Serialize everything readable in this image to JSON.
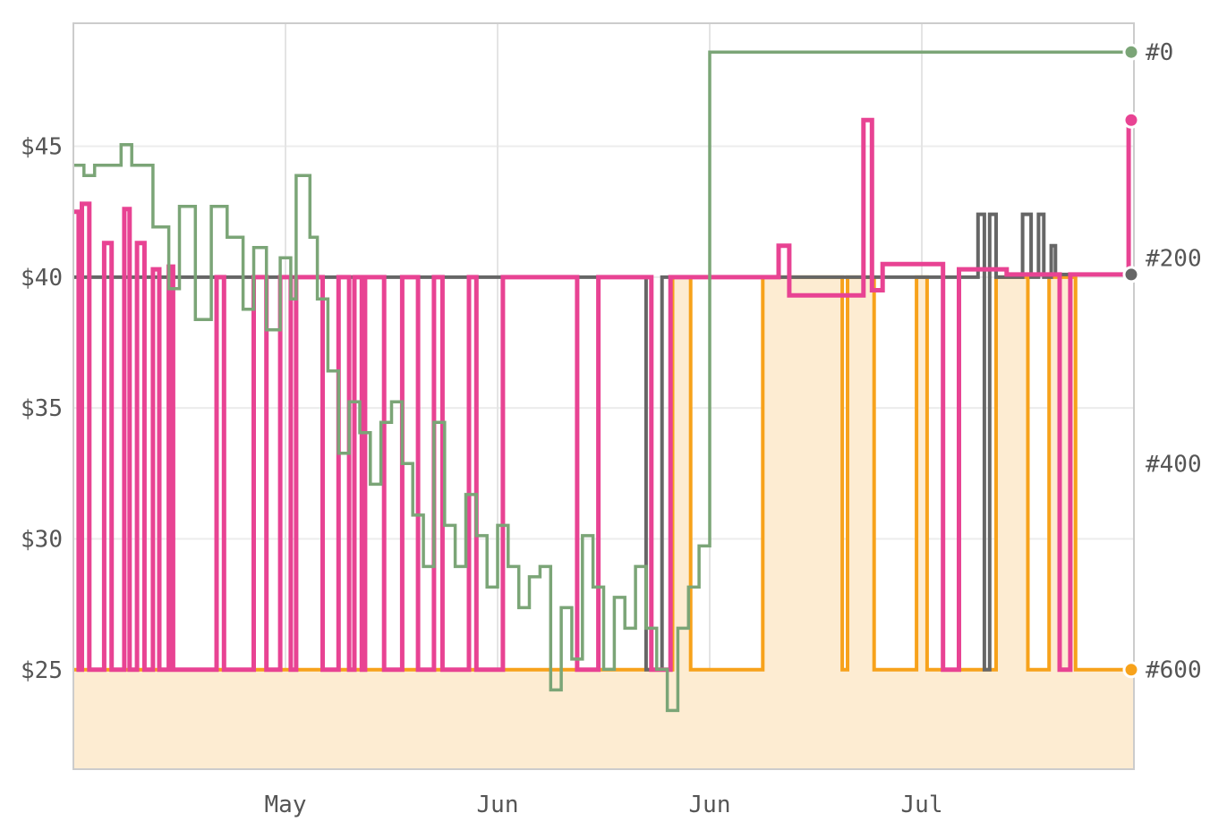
{
  "chart_data": {
    "type": "line",
    "step": true,
    "grid": true,
    "legend": "none",
    "y_left": {
      "ticks": [
        "$25",
        "$30",
        "$35",
        "$40",
        "$45"
      ],
      "values": [
        25,
        30,
        35,
        40,
        45
      ],
      "range": [
        21.2,
        49.7
      ]
    },
    "y_right": {
      "ticks": [
        "#0",
        "#200",
        "#400",
        "#600"
      ],
      "values": [
        0,
        200,
        400,
        600
      ],
      "range": [
        -28,
        697
      ]
    },
    "x_ticks": [
      "May",
      "Jun",
      "Jun",
      "Jul"
    ],
    "x_range": [
      0,
      100
    ],
    "x_tick_positions": [
      20,
      40,
      60,
      80
    ],
    "series": [
      {
        "key": "amazon",
        "axis": "left",
        "color": "#f7a21b",
        "fill": "#fdecd2",
        "filled": true,
        "points": [
          [
            0,
            25
          ],
          [
            56.5,
            25
          ],
          [
            56.5,
            40
          ],
          [
            58.2,
            40
          ],
          [
            58.2,
            25
          ],
          [
            65,
            25
          ],
          [
            65,
            40
          ],
          [
            72.5,
            40
          ],
          [
            72.5,
            25
          ],
          [
            73,
            25
          ],
          [
            73,
            40
          ],
          [
            75.5,
            40
          ],
          [
            75.5,
            25
          ],
          [
            79.5,
            25
          ],
          [
            79.5,
            40
          ],
          [
            80.5,
            40
          ],
          [
            80.5,
            25
          ],
          [
            87,
            25
          ],
          [
            87,
            40
          ],
          [
            90,
            40
          ],
          [
            90,
            25
          ],
          [
            92,
            25
          ],
          [
            92,
            40
          ],
          [
            94.5,
            40
          ],
          [
            94.5,
            25
          ],
          [
            100,
            25
          ]
        ]
      },
      {
        "key": "thirdparty",
        "axis": "left",
        "color": "#666666",
        "filled": false,
        "points": [
          [
            0,
            40
          ],
          [
            54,
            40
          ],
          [
            54,
            25
          ],
          [
            55.5,
            25
          ],
          [
            55.5,
            40
          ],
          [
            85.3,
            40
          ],
          [
            85.3,
            42.4
          ],
          [
            85.9,
            42.4
          ],
          [
            85.9,
            25
          ],
          [
            86.4,
            25
          ],
          [
            86.4,
            42.4
          ],
          [
            87,
            42.4
          ],
          [
            87,
            40
          ],
          [
            89.5,
            40
          ],
          [
            89.5,
            42.4
          ],
          [
            90.3,
            42.4
          ],
          [
            90.3,
            40
          ],
          [
            91,
            40
          ],
          [
            91,
            42.4
          ],
          [
            91.5,
            42.4
          ],
          [
            91.5,
            40
          ],
          [
            92.2,
            40
          ],
          [
            92.2,
            41.2
          ],
          [
            92.6,
            41.2
          ],
          [
            92.6,
            40.1
          ],
          [
            100,
            40.1
          ]
        ]
      },
      {
        "key": "new",
        "axis": "left",
        "color": "#e84393",
        "filled": false,
        "points": [
          [
            0,
            42.5
          ],
          [
            0.5,
            42.5
          ],
          [
            0.5,
            25
          ],
          [
            0.8,
            25
          ],
          [
            0.8,
            42.8
          ],
          [
            1.5,
            42.8
          ],
          [
            1.5,
            25
          ],
          [
            2.9,
            25
          ],
          [
            2.9,
            41.3
          ],
          [
            3.6,
            41.3
          ],
          [
            3.6,
            25
          ],
          [
            4.8,
            25
          ],
          [
            4.8,
            42.6
          ],
          [
            5.3,
            42.6
          ],
          [
            5.3,
            25
          ],
          [
            6,
            25
          ],
          [
            6,
            41.3
          ],
          [
            6.7,
            41.3
          ],
          [
            6.7,
            25
          ],
          [
            7.5,
            25
          ],
          [
            7.5,
            40.3
          ],
          [
            8.1,
            40.3
          ],
          [
            8.1,
            25
          ],
          [
            9,
            25
          ],
          [
            9,
            40.4
          ],
          [
            9.4,
            40.4
          ],
          [
            9.4,
            25
          ],
          [
            13.5,
            25
          ],
          [
            13.5,
            40
          ],
          [
            14.2,
            40
          ],
          [
            14.2,
            25
          ],
          [
            17,
            25
          ],
          [
            17,
            40
          ],
          [
            18.2,
            40
          ],
          [
            18.2,
            25
          ],
          [
            19.5,
            25
          ],
          [
            19.5,
            40
          ],
          [
            20.5,
            40
          ],
          [
            20.5,
            25
          ],
          [
            21,
            25
          ],
          [
            21,
            40
          ],
          [
            23.5,
            40
          ],
          [
            23.5,
            25
          ],
          [
            25,
            25
          ],
          [
            25,
            40
          ],
          [
            26,
            40
          ],
          [
            26,
            25
          ],
          [
            26.5,
            25
          ],
          [
            26.5,
            40
          ],
          [
            27.2,
            40
          ],
          [
            27.2,
            25
          ],
          [
            27.5,
            25
          ],
          [
            27.5,
            40
          ],
          [
            29.3,
            40
          ],
          [
            29.3,
            25
          ],
          [
            31,
            25
          ],
          [
            31,
            40
          ],
          [
            32.5,
            40
          ],
          [
            32.5,
            25
          ],
          [
            34,
            25
          ],
          [
            34,
            40
          ],
          [
            34.8,
            40
          ],
          [
            34.8,
            25
          ],
          [
            37.3,
            25
          ],
          [
            37.3,
            40
          ],
          [
            38,
            40
          ],
          [
            38,
            25
          ],
          [
            40.5,
            25
          ],
          [
            40.5,
            40
          ],
          [
            47.5,
            40
          ],
          [
            47.5,
            25
          ],
          [
            49.5,
            25
          ],
          [
            49.5,
            40
          ],
          [
            54.5,
            40
          ],
          [
            54.5,
            25
          ],
          [
            56.3,
            25
          ],
          [
            56.3,
            40
          ],
          [
            66.5,
            40
          ],
          [
            66.5,
            41.2
          ],
          [
            67.5,
            41.2
          ],
          [
            67.5,
            39.3
          ],
          [
            74.5,
            39.3
          ],
          [
            74.5,
            46
          ],
          [
            75.3,
            46
          ],
          [
            75.3,
            39.5
          ],
          [
            76.3,
            39.5
          ],
          [
            76.3,
            40.5
          ],
          [
            82,
            40.5
          ],
          [
            82,
            25
          ],
          [
            83.5,
            25
          ],
          [
            83.5,
            40.3
          ],
          [
            88,
            40.3
          ],
          [
            88,
            40.1
          ],
          [
            93,
            40.1
          ],
          [
            93,
            25
          ],
          [
            94,
            25
          ],
          [
            94,
            40.1
          ],
          [
            99.5,
            40.1
          ],
          [
            99.5,
            46
          ],
          [
            100,
            46
          ]
        ]
      },
      {
        "key": "salesrank",
        "axis": "right",
        "color": "#7ba577",
        "filled": false,
        "points": [
          [
            0,
            110
          ],
          [
            1,
            110
          ],
          [
            1,
            120
          ],
          [
            2,
            120
          ],
          [
            2,
            110
          ],
          [
            4.5,
            110
          ],
          [
            4.5,
            90
          ],
          [
            5.5,
            90
          ],
          [
            5.5,
            110
          ],
          [
            7.5,
            110
          ],
          [
            7.5,
            170
          ],
          [
            9,
            170
          ],
          [
            9,
            230
          ],
          [
            10,
            230
          ],
          [
            10,
            150
          ],
          [
            11.5,
            150
          ],
          [
            11.5,
            260
          ],
          [
            13,
            260
          ],
          [
            13,
            150
          ],
          [
            14.5,
            150
          ],
          [
            14.5,
            180
          ],
          [
            16,
            180
          ],
          [
            16,
            250
          ],
          [
            17,
            250
          ],
          [
            17,
            190
          ],
          [
            18.2,
            190
          ],
          [
            18.2,
            270
          ],
          [
            19.5,
            270
          ],
          [
            19.5,
            200
          ],
          [
            20.5,
            200
          ],
          [
            20.5,
            240
          ],
          [
            21,
            240
          ],
          [
            21,
            120
          ],
          [
            22.3,
            120
          ],
          [
            22.3,
            180
          ],
          [
            23,
            180
          ],
          [
            23,
            240
          ],
          [
            24,
            240
          ],
          [
            24,
            310
          ],
          [
            25,
            310
          ],
          [
            25,
            390
          ],
          [
            26,
            390
          ],
          [
            26,
            340
          ],
          [
            27,
            340
          ],
          [
            27,
            370
          ],
          [
            28,
            370
          ],
          [
            28,
            420
          ],
          [
            29,
            420
          ],
          [
            29,
            360
          ],
          [
            30,
            360
          ],
          [
            30,
            340
          ],
          [
            31,
            340
          ],
          [
            31,
            400
          ],
          [
            32,
            400
          ],
          [
            32,
            450
          ],
          [
            33,
            450
          ],
          [
            33,
            500
          ],
          [
            34,
            500
          ],
          [
            34,
            360
          ],
          [
            35,
            360
          ],
          [
            35,
            460
          ],
          [
            36,
            460
          ],
          [
            36,
            500
          ],
          [
            37,
            500
          ],
          [
            37,
            430
          ],
          [
            38,
            430
          ],
          [
            38,
            470
          ],
          [
            39,
            470
          ],
          [
            39,
            520
          ],
          [
            40,
            520
          ],
          [
            40,
            460
          ],
          [
            41,
            460
          ],
          [
            41,
            500
          ],
          [
            42,
            500
          ],
          [
            42,
            540
          ],
          [
            43,
            540
          ],
          [
            43,
            510
          ],
          [
            44,
            510
          ],
          [
            44,
            500
          ],
          [
            45,
            500
          ],
          [
            45,
            620
          ],
          [
            46,
            620
          ],
          [
            46,
            540
          ],
          [
            47,
            540
          ],
          [
            47,
            590
          ],
          [
            48,
            590
          ],
          [
            48,
            470
          ],
          [
            49,
            470
          ],
          [
            49,
            520
          ],
          [
            50,
            520
          ],
          [
            50,
            600
          ],
          [
            51,
            600
          ],
          [
            51,
            530
          ],
          [
            52,
            530
          ],
          [
            52,
            560
          ],
          [
            53,
            560
          ],
          [
            53,
            500
          ],
          [
            54,
            500
          ],
          [
            54,
            560
          ],
          [
            55,
            560
          ],
          [
            55,
            600
          ],
          [
            56,
            600
          ],
          [
            56,
            640
          ],
          [
            57,
            640
          ],
          [
            57,
            560
          ],
          [
            58,
            560
          ],
          [
            58,
            520
          ],
          [
            59,
            520
          ],
          [
            59,
            480
          ],
          [
            60,
            480
          ],
          [
            60,
            0
          ],
          [
            100,
            0
          ]
        ]
      }
    ]
  }
}
